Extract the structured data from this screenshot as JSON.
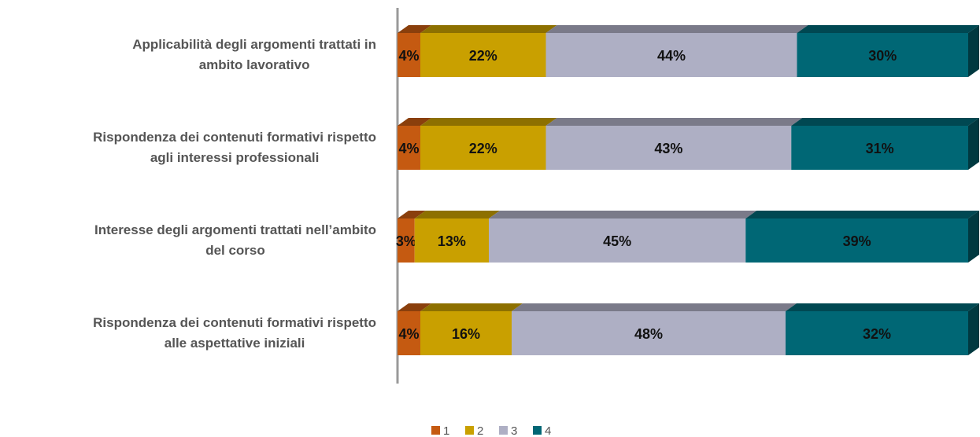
{
  "chart_data": {
    "type": "stacked-bar-horizontal",
    "categories": [
      "Applicabilità degli argomenti trattati in\nambito lavorativo",
      "Rispondenza dei contenuti formativi rispetto\nagli interessi professionali",
      "Interesse degli argomenti trattati nell’ambito\ndel corso",
      "Rispondenza dei contenuti formativi rispetto\nalle aspettative iniziali"
    ],
    "series": [
      {
        "name": "1",
        "color": "#c55a11",
        "values": [
          4,
          4,
          3,
          4
        ],
        "value_labels": [
          "4%",
          "4%",
          "3%",
          "4%"
        ]
      },
      {
        "name": "2",
        "color": "#c9a000",
        "values": [
          22,
          22,
          13,
          16
        ],
        "value_labels": [
          "22%",
          "22%",
          "13%",
          "16%"
        ]
      },
      {
        "name": "3",
        "color": "#aeafc4",
        "values": [
          44,
          43,
          45,
          48
        ],
        "value_labels": [
          "44%",
          "43%",
          "45%",
          "48%"
        ]
      },
      {
        "name": "4",
        "color": "#006775",
        "values": [
          30,
          31,
          39,
          32
        ],
        "value_labels": [
          "30%",
          "31%",
          "39%",
          "32%"
        ]
      }
    ],
    "legend": "bottom"
  }
}
